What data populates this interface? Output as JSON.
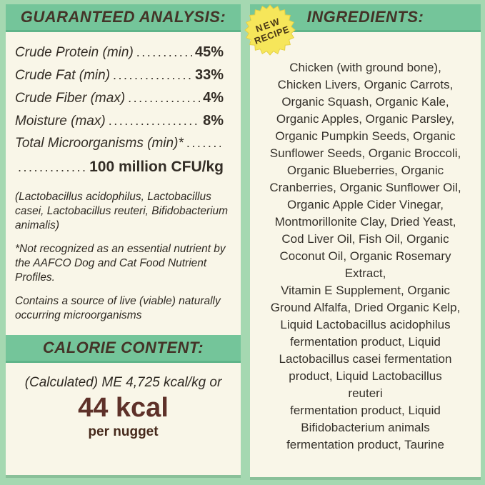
{
  "colors": {
    "page_background": "#a5d8b1",
    "panel_background": "#f9f6e8",
    "header_bar": "#74c59a",
    "header_text": "#443428",
    "body_text": "#332d26",
    "calorie_value": "#5e3129",
    "badge_yellow": "#f6e65a",
    "badge_text": "#4c3a17"
  },
  "left_panel": {
    "header": "GUARANTEED ANALYSIS:",
    "analysis_rows": [
      {
        "label": "Crude Protein (min)",
        "dots": ".............",
        "value": "45%"
      },
      {
        "label": "Crude Fat (min)",
        "dots": "..................",
        "value": "33%"
      },
      {
        "label": "Crude Fiber (max)",
        "dots": "................",
        "value": "4%"
      },
      {
        "label": "Moisture (max)",
        "dots": "..................",
        "value": "8%"
      },
      {
        "label": "Total Microorganisms (min)*",
        "dots": "..........",
        "value": ""
      },
      {
        "label": "",
        "dots": "..............",
        "value": "100 million CFU/kg"
      }
    ],
    "notes": [
      "(Lactobacillus acidophilus, Lactobacillus\ncasei, Lactobacillus reuteri, Bifidobacterium\nanimalis)",
      "*Not recognized as an essential nutrient by\nthe AAFCO Dog and Cat Food Nutrient\nProfiles.",
      "Contains a source of live (viable) naturally\noccurring microorganisms"
    ],
    "calorie": {
      "header": "CALORIE CONTENT:",
      "line1": "(Calculated) ME 4,725 kcal/kg or",
      "value": "44 kcal",
      "unit": "per nugget"
    }
  },
  "right_panel": {
    "header": "INGREDIENTS:",
    "badge": {
      "line1": "NEW",
      "line2": "RECIPE"
    },
    "ingredients": "Chicken (with ground bone),\nChicken Livers, Organic Carrots,\nOrganic Squash, Organic Kale,\nOrganic Apples, Organic Parsley,\nOrganic Pumpkin Seeds, Organic\nSunflower Seeds, Organic Broccoli,\nOrganic Blueberries, Organic\nCranberries, Organic Sunflower Oil,\nOrganic Apple Cider Vinegar,\nMontmorillonite Clay, Dried Yeast,\nCod Liver Oil, Fish Oil, Organic\nCoconut Oil, Organic Rosemary\nExtract,\nVitamin E Supplement, Organic\nGround Alfalfa, Dried Organic Kelp,\nLiquid Lactobacillus acidophilus\nfermentation product, Liquid\nLactobacillus casei fermentation\nproduct, Liquid Lactobacillus\nreuteri\nfermentation product, Liquid\nBifidobacterium animals\nfermentation product, Taurine"
  }
}
